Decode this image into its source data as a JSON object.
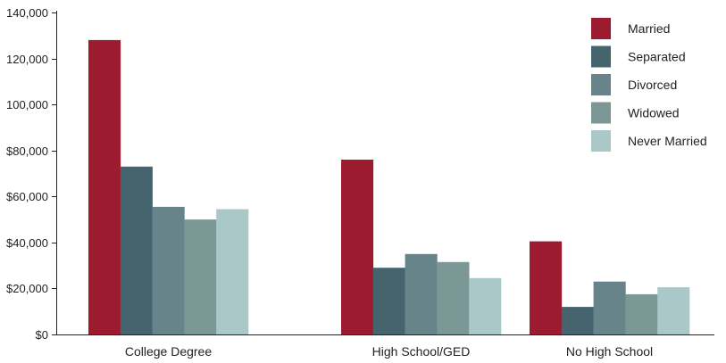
{
  "chart_data": {
    "type": "bar",
    "categories": [
      "College Degree",
      "High School/GED",
      "No High School"
    ],
    "series": [
      {
        "name": "Married",
        "values": [
          128000,
          76000,
          40500
        ],
        "color": "#9d1b2e"
      },
      {
        "name": "Separated",
        "values": [
          73000,
          29000,
          12000
        ],
        "color": "#45646e"
      },
      {
        "name": "Divorced",
        "values": [
          55500,
          35000,
          23000
        ],
        "color": "#67848b"
      },
      {
        "name": "Widowed",
        "values": [
          50000,
          31500,
          17500
        ],
        "color": "#7c9896"
      },
      {
        "name": "Never Married",
        "values": [
          54500,
          24500,
          20500
        ],
        "color": "#abc8c8"
      }
    ],
    "ylim": [
      0,
      140000
    ],
    "yticks": [
      0,
      20000,
      40000,
      60000,
      80000,
      100000,
      120000,
      140000
    ],
    "ytick_labels": [
      "$0",
      "$20,000",
      "$40,000",
      "$60,000",
      "$80,000",
      "100,000",
      "120,000",
      "140,000"
    ],
    "title": "",
    "xlabel": "",
    "ylabel": "",
    "grid": false,
    "legend_position": "top-right"
  }
}
